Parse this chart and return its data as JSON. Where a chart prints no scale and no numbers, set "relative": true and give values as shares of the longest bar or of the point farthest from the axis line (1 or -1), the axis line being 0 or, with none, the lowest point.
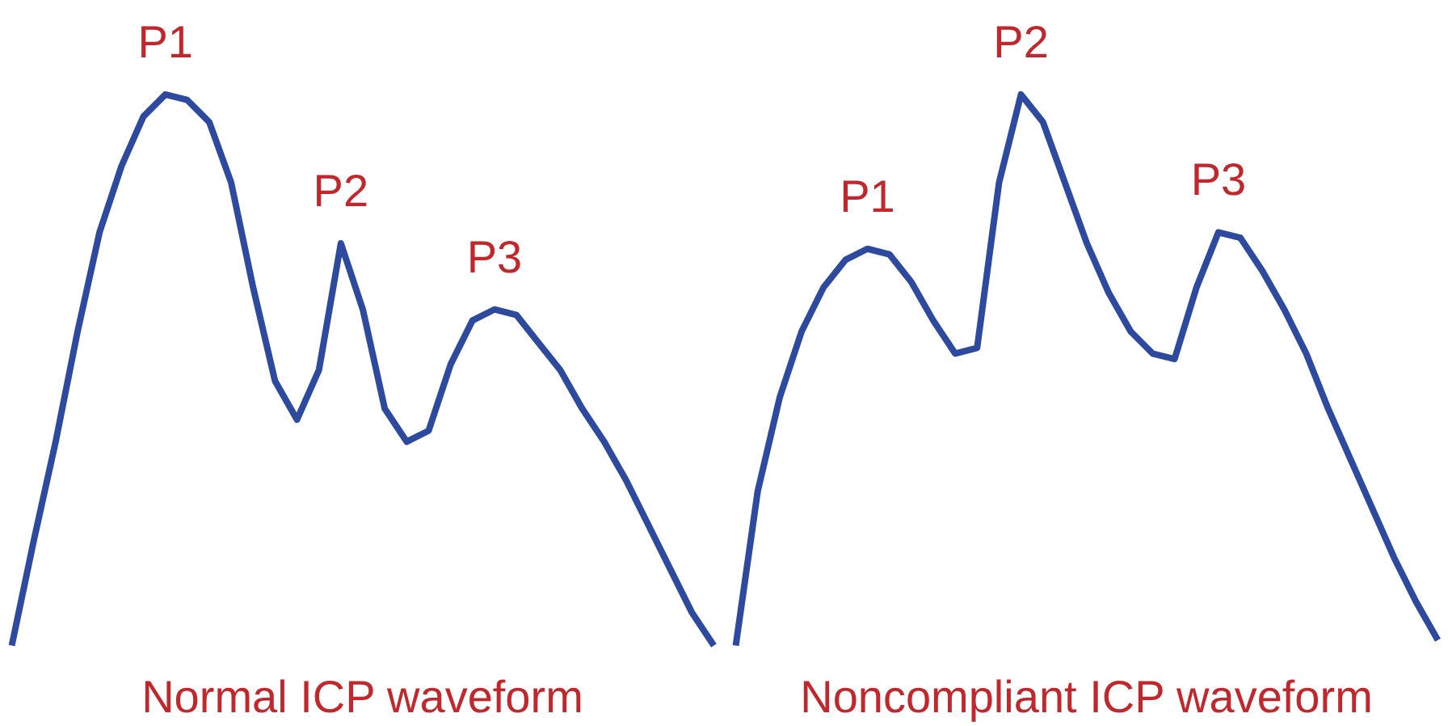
{
  "chart_data": [
    {
      "type": "line",
      "relative": true,
      "xlabel": "Normal ICP waveform",
      "annotations": [
        "P1",
        "P2",
        "P3"
      ],
      "tick_labels": false,
      "grid": false,
      "categories": [
        null,
        null,
        null,
        null,
        null,
        null,
        null,
        null,
        null,
        null,
        null,
        null,
        null,
        null,
        null,
        null,
        null,
        null,
        null,
        null,
        null,
        null,
        null,
        null,
        null,
        null,
        null,
        null,
        null,
        null,
        null,
        null,
        null
      ],
      "series": [
        {
          "color": "#2e4a9e",
          "values": [
            0,
            0.19,
            0.37,
            0.57,
            0.75,
            0.87,
            0.96,
            1.0,
            0.99,
            0.95,
            0.84,
            0.65,
            0.48,
            0.41,
            0.5,
            0.73,
            0.61,
            0.43,
            0.37,
            0.39,
            0.51,
            0.59,
            0.61,
            0.6,
            0.55,
            0.5,
            0.43,
            0.37,
            0.3,
            0.22,
            0.14,
            0.06,
            0
          ]
        }
      ]
    },
    {
      "type": "line",
      "relative": true,
      "xlabel": "Noncompliant ICP waveform",
      "annotations": [
        "P1",
        "P2",
        "P3"
      ],
      "tick_labels": false,
      "grid": false,
      "categories": [
        null,
        null,
        null,
        null,
        null,
        null,
        null,
        null,
        null,
        null,
        null,
        null,
        null,
        null,
        null,
        null,
        null,
        null,
        null,
        null,
        null,
        null,
        null,
        null,
        null,
        null,
        null,
        null,
        null,
        null,
        null,
        null,
        null
      ],
      "series": [
        {
          "color": "#2e4a9e",
          "values": [
            0,
            0.28,
            0.45,
            0.57,
            0.65,
            0.7,
            0.72,
            0.71,
            0.66,
            0.59,
            0.53,
            0.54,
            0.84,
            1.0,
            0.95,
            0.84,
            0.73,
            0.64,
            0.57,
            0.53,
            0.52,
            0.65,
            0.75,
            0.74,
            0.68,
            0.61,
            0.53,
            0.43,
            0.34,
            0.25,
            0.16,
            0.08,
            0.01
          ]
        }
      ]
    }
  ]
}
